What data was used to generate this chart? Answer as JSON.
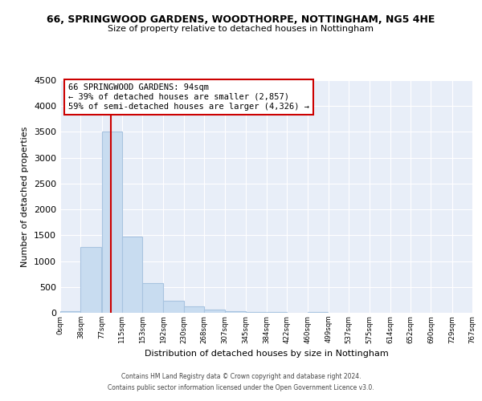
{
  "title1": "66, SPRINGWOOD GARDENS, WOODTHORPE, NOTTINGHAM, NG5 4HE",
  "title2": "Size of property relative to detached houses in Nottingham",
  "xlabel": "Distribution of detached houses by size in Nottingham",
  "ylabel": "Number of detached properties",
  "bar_left_edges": [
    0,
    38,
    77,
    115,
    153,
    192,
    230,
    268,
    307,
    345,
    384,
    422,
    460,
    499,
    537,
    575,
    614,
    652,
    690,
    729
  ],
  "bar_heights": [
    30,
    1280,
    3500,
    1480,
    575,
    240,
    130,
    65,
    30,
    15,
    10,
    5,
    20,
    0,
    0,
    0,
    0,
    0,
    0,
    0
  ],
  "bin_width": 38,
  "bar_color": "#C8DCF0",
  "bar_edgecolor": "#A8C4E0",
  "property_line_x": 94,
  "property_line_color": "#CC0000",
  "annotation_line1": "66 SPRINGWOOD GARDENS: 94sqm",
  "annotation_line2": "← 39% of detached houses are smaller (2,857)",
  "annotation_line3": "59% of semi-detached houses are larger (4,326) →",
  "annotation_box_edgecolor": "#CC0000",
  "annotation_box_facecolor": "#FFFFFF",
  "tick_labels": [
    "0sqm",
    "38sqm",
    "77sqm",
    "115sqm",
    "153sqm",
    "192sqm",
    "230sqm",
    "268sqm",
    "307sqm",
    "345sqm",
    "384sqm",
    "422sqm",
    "460sqm",
    "499sqm",
    "537sqm",
    "575sqm",
    "614sqm",
    "652sqm",
    "690sqm",
    "729sqm",
    "767sqm"
  ],
  "ylim": [
    0,
    4500
  ],
  "yticks": [
    0,
    500,
    1000,
    1500,
    2000,
    2500,
    3000,
    3500,
    4000,
    4500
  ],
  "footer1": "Contains HM Land Registry data © Crown copyright and database right 2024.",
  "footer2": "Contains public sector information licensed under the Open Government Licence v3.0.",
  "plot_bg_color": "#E8EEF8",
  "fig_bg_color": "#FFFFFF",
  "grid_color": "#FFFFFF"
}
